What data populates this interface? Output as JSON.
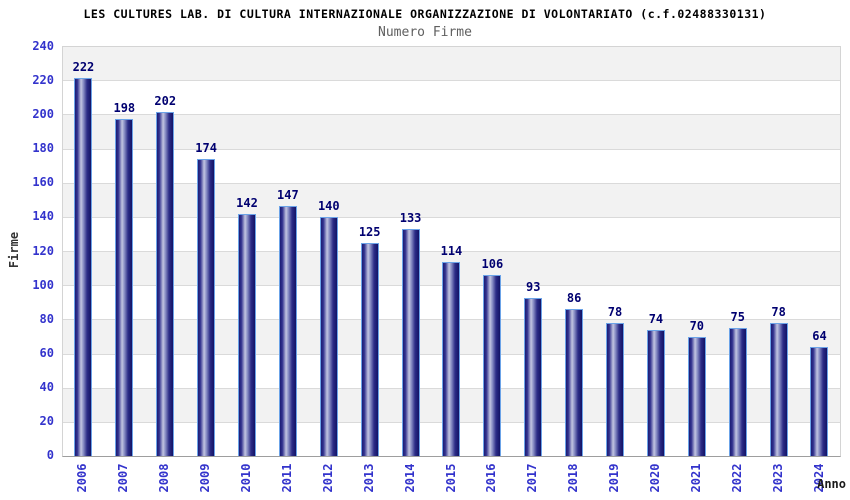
{
  "header": {
    "title": "LES CULTURES LAB. DI CULTURA INTERNAZIONALE ORGANIZZAZIONE DI VOLONTARIATO (c.f.02488330131)",
    "subtitle": "Numero Firme"
  },
  "chart_data": {
    "type": "bar",
    "title": "LES CULTURES LAB. DI CULTURA INTERNAZIONALE ORGANIZZAZIONE DI VOLONTARIATO (c.f.02488330131)",
    "subtitle": "Numero Firme",
    "xlabel": "Anno",
    "ylabel": "Firme",
    "categories": [
      "2006",
      "2007",
      "2008",
      "2009",
      "2010",
      "2011",
      "2012",
      "2013",
      "2014",
      "2015",
      "2016",
      "2017",
      "2018",
      "2019",
      "2020",
      "2021",
      "2022",
      "2023",
      "2024"
    ],
    "values": [
      222,
      198,
      202,
      174,
      142,
      147,
      140,
      125,
      133,
      114,
      106,
      93,
      86,
      78,
      74,
      70,
      75,
      78,
      64
    ],
    "ylim": [
      0,
      240
    ],
    "ytick_step": 20,
    "ytick_labels": [
      "0",
      "20",
      "40",
      "60",
      "80",
      "100",
      "120",
      "140",
      "160",
      "180",
      "200",
      "220",
      "240"
    ],
    "grid": "horizontal alternating bands",
    "legend": "none",
    "colors": {
      "bar_dark": "#16166b",
      "bar_light": "#c2c5e1",
      "bar_border": "#6ba3e8",
      "tick_label_blue": "#3333cc",
      "value_label_navy": "#000070",
      "band_gray": "#f2f2f2",
      "band_white": "#ffffff",
      "title_black": "#000000",
      "subtitle_gray": "#606060"
    }
  }
}
